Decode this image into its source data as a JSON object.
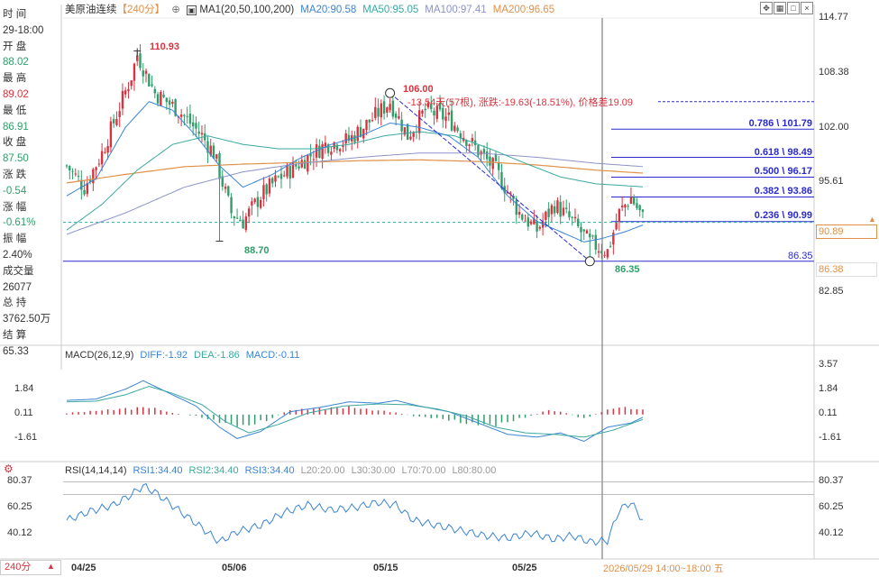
{
  "header": {
    "symbol": "美原油连续",
    "period": "【240分】",
    "indicator": "MA1(20,50,100,200)",
    "ma20": "MA20:90.58",
    "ma50": "MA50:95.05",
    "ma100": "MA100:97.41",
    "ma200": "MA200:96.65"
  },
  "info": {
    "time_label": "时 间",
    "time": "29-18:00",
    "open_label": "开 盘",
    "open": "88.02",
    "high_label": "最 高",
    "high": "89.02",
    "low_label": "最 低",
    "low": "86.91",
    "close_label": "收 盘",
    "close": "87.50",
    "change_label": "涨 跌",
    "change": "-0.54",
    "pct_label": "涨 幅",
    "pct": "-0.61%",
    "amp_label": "振 幅",
    "amp": "2.40%",
    "vol_label": "成交量",
    "vol": "26077",
    "oi_label": "总 持",
    "oi": "3762.50万",
    "settle_label": "结 算",
    "settle": "65.33"
  },
  "annotations": {
    "high_label": "110.93",
    "low_label1": "88.70",
    "peak_label": "106.00",
    "low_label2": "86.35",
    "measure": "-13.54天(57根), 涨跌:-19.63(-18.51%), 价格差19.09",
    "fib_786": "0.786 \\ 101.79",
    "fib_618": "0.618 \\ 98.49",
    "fib_500": "0.500 \\ 96.17",
    "fib_382": "0.382 \\ 93.86",
    "fib_236": "0.236 \\ 90.99",
    "hline_label": "86.35",
    "price_box": "90.89",
    "hline_box": "86.38"
  },
  "main_axis": [
    "114.77",
    "108.38",
    "102.00",
    "95.61",
    "89.23",
    "82.85"
  ],
  "macd": {
    "title": "MACD(26,12,9)",
    "diff": "DIFF:-1.92",
    "dea": "DEA:-1.86",
    "macd": "MACD:-0.11",
    "axis": [
      "3.57",
      "1.84",
      "0.11",
      "-1.61"
    ],
    "left_axis": [
      "1.84",
      "0.11",
      "-1.61"
    ]
  },
  "rsi": {
    "title": "RSI(14,14,14)",
    "rsi1": "RSI1:34.40",
    "rsi2": "RSI2:34.40",
    "rsi3": "RSI3:34.40",
    "l20": "L20:20.00",
    "l30": "L30:30.00",
    "l70": "L70:70.00",
    "l80": "L80:80.00",
    "axis": [
      "80.37",
      "60.25",
      "40.12"
    ],
    "left_axis": [
      "80.37",
      "60.25",
      "40.12"
    ]
  },
  "xaxis": {
    "period_button": "240分",
    "dates": [
      "04/25",
      "05/06",
      "05/15",
      "05/25"
    ],
    "cursor_label": "2026/05/29 14:00~18:00 五"
  },
  "colors": {
    "up": "#d9333f",
    "down": "#2f9e6a",
    "ma20": "#3a84d6",
    "ma50": "#3aa8a0",
    "ma100": "#8b93c8",
    "ma200": "#e09048"
  },
  "chart_data": {
    "type": "candlestick",
    "ylim": [
      82.85,
      114.77
    ],
    "anchors": [
      {
        "i": 0,
        "p": 97.5
      },
      {
        "i": 6,
        "p": 95
      },
      {
        "i": 12,
        "p": 99
      },
      {
        "i": 22,
        "p": 108
      },
      {
        "i": 24,
        "p": 110.5
      },
      {
        "i": 30,
        "p": 106
      },
      {
        "i": 38,
        "p": 104
      },
      {
        "i": 46,
        "p": 101
      },
      {
        "i": 50,
        "p": 99
      },
      {
        "i": 56,
        "p": 92
      },
      {
        "i": 60,
        "p": 91
      },
      {
        "i": 66,
        "p": 94
      },
      {
        "i": 72,
        "p": 96
      },
      {
        "i": 80,
        "p": 98
      },
      {
        "i": 88,
        "p": 100
      },
      {
        "i": 96,
        "p": 100.5
      },
      {
        "i": 104,
        "p": 103
      },
      {
        "i": 110,
        "p": 105
      },
      {
        "i": 116,
        "p": 101
      },
      {
        "i": 122,
        "p": 104
      },
      {
        "i": 130,
        "p": 103
      },
      {
        "i": 138,
        "p": 100
      },
      {
        "i": 146,
        "p": 97
      },
      {
        "i": 154,
        "p": 92
      },
      {
        "i": 160,
        "p": 90
      },
      {
        "i": 166,
        "p": 93
      },
      {
        "i": 172,
        "p": 91
      },
      {
        "i": 178,
        "p": 88.5
      },
      {
        "i": 184,
        "p": 87.5
      },
      {
        "i": 188,
        "p": 92
      },
      {
        "i": 192,
        "p": 93.8
      },
      {
        "i": 196,
        "p": 91.4
      }
    ],
    "ma20": [
      [
        0,
        94
      ],
      [
        10,
        96
      ],
      [
        20,
        102
      ],
      [
        28,
        105
      ],
      [
        36,
        104
      ],
      [
        44,
        101
      ],
      [
        52,
        97.5
      ],
      [
        60,
        95
      ],
      [
        70,
        96.5
      ],
      [
        80,
        98.5
      ],
      [
        90,
        100
      ],
      [
        100,
        101
      ],
      [
        110,
        102.5
      ],
      [
        120,
        102
      ],
      [
        130,
        101
      ],
      [
        140,
        98.5
      ],
      [
        150,
        94
      ],
      [
        160,
        91
      ],
      [
        170,
        89.5
      ],
      [
        176,
        88.6
      ],
      [
        182,
        89
      ],
      [
        190,
        89.8
      ],
      [
        196,
        90.58
      ]
    ],
    "ma50": [
      [
        0,
        90
      ],
      [
        12,
        93
      ],
      [
        24,
        97
      ],
      [
        36,
        100
      ],
      [
        48,
        101
      ],
      [
        60,
        100
      ],
      [
        72,
        99.5
      ],
      [
        84,
        99.5
      ],
      [
        96,
        100
      ],
      [
        108,
        101
      ],
      [
        120,
        101.5
      ],
      [
        132,
        101
      ],
      [
        144,
        99.5
      ],
      [
        156,
        97.8
      ],
      [
        168,
        96.2
      ],
      [
        180,
        95.4
      ],
      [
        196,
        95.05
      ]
    ],
    "ma100": [
      [
        0,
        89.5
      ],
      [
        20,
        92
      ],
      [
        40,
        95
      ],
      [
        60,
        96.8
      ],
      [
        80,
        97.8
      ],
      [
        100,
        98.5
      ],
      [
        120,
        99
      ],
      [
        140,
        99
      ],
      [
        160,
        98.5
      ],
      [
        180,
        97.8
      ],
      [
        196,
        97.41
      ]
    ],
    "ma200": [
      [
        0,
        95.5
      ],
      [
        20,
        96.5
      ],
      [
        40,
        97.4
      ],
      [
        60,
        97.7
      ],
      [
        80,
        97.9
      ],
      [
        100,
        98.1
      ],
      [
        120,
        98.2
      ],
      [
        140,
        98
      ],
      [
        160,
        97.6
      ],
      [
        180,
        97
      ],
      [
        196,
        96.65
      ]
    ],
    "points": {
      "high": [
        24,
        110.93
      ],
      "low1": [
        52,
        88.7
      ],
      "peak": [
        110,
        106.0
      ],
      "low2": [
        178,
        86.35
      ]
    },
    "fib_levels": [
      101.79,
      98.49,
      96.17,
      93.86,
      90.99
    ],
    "measure_top": 105.0,
    "hline": 86.35,
    "dashed_price": 90.89,
    "macd_ylim": [
      -3.0,
      3.57
    ],
    "diff": [
      [
        0,
        1.0
      ],
      [
        10,
        1.1
      ],
      [
        20,
        1.8
      ],
      [
        26,
        2.4
      ],
      [
        34,
        1.6
      ],
      [
        44,
        0.6
      ],
      [
        52,
        -0.9
      ],
      [
        58,
        -1.7
      ],
      [
        66,
        -1.2
      ],
      [
        76,
        0.2
      ],
      [
        86,
        0.5
      ],
      [
        96,
        0.9
      ],
      [
        106,
        0.8
      ],
      [
        112,
        1.0
      ],
      [
        120,
        0.6
      ],
      [
        130,
        0.2
      ],
      [
        140,
        -0.6
      ],
      [
        150,
        -1.4
      ],
      [
        160,
        -1.6
      ],
      [
        168,
        -1.3
      ],
      [
        176,
        -1.9
      ],
      [
        184,
        -0.9
      ],
      [
        192,
        -0.6
      ],
      [
        196,
        -0.2
      ]
    ],
    "dea": [
      [
        0,
        0.9
      ],
      [
        10,
        0.95
      ],
      [
        20,
        1.4
      ],
      [
        28,
        2.0
      ],
      [
        36,
        1.5
      ],
      [
        46,
        0.7
      ],
      [
        54,
        -0.5
      ],
      [
        62,
        -1.3
      ],
      [
        72,
        -0.7
      ],
      [
        82,
        0.1
      ],
      [
        94,
        0.6
      ],
      [
        106,
        0.75
      ],
      [
        116,
        0.7
      ],
      [
        126,
        0.4
      ],
      [
        136,
        -0.1
      ],
      [
        146,
        -0.9
      ],
      [
        156,
        -1.3
      ],
      [
        166,
        -1.4
      ],
      [
        176,
        -1.6
      ],
      [
        186,
        -1.1
      ],
      [
        196,
        -0.35
      ]
    ],
    "macd_hist": [
      [
        0,
        0.1
      ],
      [
        20,
        0.4
      ],
      [
        28,
        0.5
      ],
      [
        36,
        0.1
      ],
      [
        44,
        -0.1
      ],
      [
        52,
        -0.5
      ],
      [
        60,
        -0.8
      ],
      [
        68,
        -0.4
      ],
      [
        76,
        0.3
      ],
      [
        86,
        0.4
      ],
      [
        96,
        0.5
      ],
      [
        104,
        0.3
      ],
      [
        110,
        0.2
      ],
      [
        118,
        -0.1
      ],
      [
        128,
        -0.3
      ],
      [
        136,
        -0.6
      ],
      [
        146,
        -0.7
      ],
      [
        156,
        -0.2
      ],
      [
        164,
        0.3
      ],
      [
        170,
        0.1
      ],
      [
        176,
        -0.3
      ],
      [
        182,
        0.2
      ],
      [
        188,
        0.5
      ],
      [
        192,
        0.4
      ],
      [
        196,
        0.3
      ]
    ],
    "rsi_ylim": [
      25,
      87
    ],
    "rsi_lines": [
      80,
      70
    ],
    "rsi": [
      [
        0,
        50
      ],
      [
        8,
        57
      ],
      [
        16,
        62
      ],
      [
        22,
        70
      ],
      [
        26,
        77
      ],
      [
        30,
        72
      ],
      [
        38,
        58
      ],
      [
        46,
        44
      ],
      [
        52,
        33
      ],
      [
        58,
        41
      ],
      [
        66,
        46
      ],
      [
        74,
        56
      ],
      [
        82,
        62
      ],
      [
        90,
        58
      ],
      [
        98,
        60
      ],
      [
        106,
        64
      ],
      [
        112,
        62
      ],
      [
        118,
        50
      ],
      [
        126,
        46
      ],
      [
        134,
        42
      ],
      [
        142,
        38
      ],
      [
        150,
        36
      ],
      [
        158,
        40
      ],
      [
        166,
        35
      ],
      [
        172,
        38
      ],
      [
        178,
        33
      ],
      [
        184,
        34
      ],
      [
        188,
        58
      ],
      [
        192,
        64
      ],
      [
        196,
        50
      ]
    ]
  }
}
